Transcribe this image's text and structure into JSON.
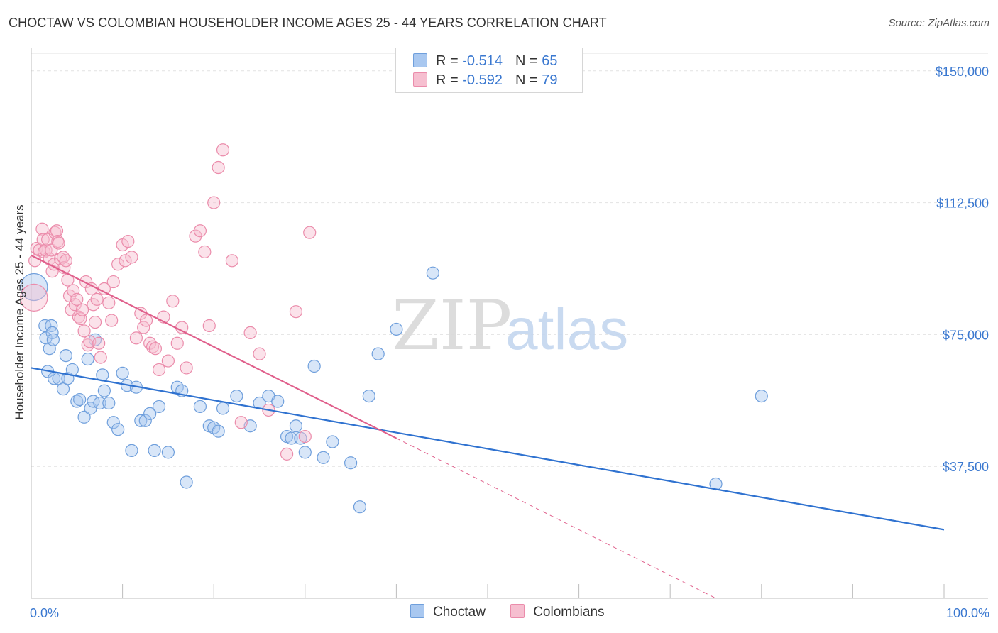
{
  "title": "CHOCTAW VS COLOMBIAN HOUSEHOLDER INCOME AGES 25 - 44 YEARS CORRELATION CHART",
  "source": "Source: ZipAtlas.com",
  "watermark": {
    "zip": "ZIP",
    "atlas": "atlas"
  },
  "legend_top": [
    {
      "r_label": "R = ",
      "r_value": "-0.514",
      "n_label": "N = ",
      "n_value": "65"
    },
    {
      "r_label": "R = ",
      "r_value": "-0.592",
      "n_label": "N = ",
      "n_value": "79"
    }
  ],
  "legend_bottom": [
    "Choctaw",
    "Colombians"
  ],
  "colors": {
    "choctaw_fill": "#a9c8f0",
    "choctaw_stroke": "#6f9fdc",
    "choctaw_line": "#2f72d0",
    "colombian_fill": "#f6bfd0",
    "colombian_stroke": "#eb8cab",
    "colombian_line": "#e0608c",
    "axis_label": "#3a78d0",
    "grid": "#e2e2e2"
  },
  "chart_data": {
    "type": "scatter",
    "title": "CHOCTAW VS COLOMBIAN HOUSEHOLDER INCOME AGES 25 - 44 YEARS CORRELATION CHART",
    "xlabel": "",
    "ylabel": "Householder Income Ages 25 - 44 years",
    "x_tick_labels": [
      "0.0%",
      "100.0%"
    ],
    "xlim": [
      0,
      100
    ],
    "ylim": [
      0,
      155000
    ],
    "y_ticks": [
      {
        "value": 37500,
        "label": "$37,500"
      },
      {
        "value": 75000,
        "label": "$75,000"
      },
      {
        "value": 112500,
        "label": "$112,500"
      },
      {
        "value": 150000,
        "label": "$150,000"
      }
    ],
    "series": [
      {
        "name": "Choctaw",
        "r": -0.514,
        "n": 65,
        "trend": {
          "x0": 0,
          "y0": 65500,
          "x1": 100,
          "y1": 19500,
          "dashed_from": null
        },
        "points": [
          [
            0.3,
            88500,
            "large"
          ],
          [
            1.5,
            77500
          ],
          [
            1.6,
            74000
          ],
          [
            1.8,
            64500
          ],
          [
            2.0,
            71000
          ],
          [
            2.2,
            77500
          ],
          [
            2.3,
            75500
          ],
          [
            2.4,
            73500
          ],
          [
            2.5,
            62500
          ],
          [
            3.0,
            62500
          ],
          [
            3.5,
            59500
          ],
          [
            3.8,
            69000
          ],
          [
            4.0,
            62500
          ],
          [
            4.5,
            65000
          ],
          [
            5.0,
            56000
          ],
          [
            5.3,
            56500
          ],
          [
            5.8,
            51500
          ],
          [
            6.2,
            68000
          ],
          [
            6.5,
            54000
          ],
          [
            6.8,
            56000
          ],
          [
            7.0,
            73500
          ],
          [
            7.5,
            55500
          ],
          [
            7.8,
            63500
          ],
          [
            8.0,
            59000
          ],
          [
            8.5,
            55500
          ],
          [
            9.0,
            50000
          ],
          [
            9.5,
            48000
          ],
          [
            10.0,
            64000
          ],
          [
            10.5,
            60500
          ],
          [
            11.0,
            42000
          ],
          [
            11.5,
            60000
          ],
          [
            12.0,
            50500
          ],
          [
            12.5,
            50500
          ],
          [
            13.0,
            52500
          ],
          [
            13.5,
            42000
          ],
          [
            14.0,
            54500
          ],
          [
            15.0,
            41500
          ],
          [
            16.0,
            60000
          ],
          [
            16.5,
            59000
          ],
          [
            17.0,
            33000
          ],
          [
            18.5,
            54500
          ],
          [
            19.5,
            49000
          ],
          [
            20.0,
            48500
          ],
          [
            20.5,
            47500
          ],
          [
            21.0,
            54000
          ],
          [
            22.5,
            57500
          ],
          [
            24.0,
            49000
          ],
          [
            25.0,
            55500
          ],
          [
            26.0,
            57500
          ],
          [
            27.0,
            56000
          ],
          [
            28.0,
            46000
          ],
          [
            28.5,
            45500
          ],
          [
            29.0,
            49000
          ],
          [
            29.5,
            45500
          ],
          [
            30.0,
            41500
          ],
          [
            31.0,
            66000
          ],
          [
            32.0,
            40000
          ],
          [
            33.0,
            44500
          ],
          [
            35.0,
            38500
          ],
          [
            36.0,
            26000
          ],
          [
            37.0,
            57500
          ],
          [
            38.0,
            69500
          ],
          [
            40.0,
            76500
          ],
          [
            44.0,
            92500
          ],
          [
            80.0,
            57500
          ],
          [
            75.0,
            32500
          ]
        ]
      },
      {
        "name": "Colombians",
        "r": -0.592,
        "n": 79,
        "trend": {
          "x0": 0,
          "y0": 97500,
          "x1": 75,
          "y1": 0,
          "dashed_from": 40
        },
        "points": [
          [
            0.3,
            85500,
            "large"
          ],
          [
            0.4,
            96000
          ],
          [
            0.6,
            99500
          ],
          [
            0.9,
            99000
          ],
          [
            1.2,
            105000
          ],
          [
            1.3,
            102000
          ],
          [
            1.4,
            98500
          ],
          [
            1.6,
            99000
          ],
          [
            1.8,
            102000
          ],
          [
            2.0,
            96500
          ],
          [
            2.2,
            99000
          ],
          [
            2.3,
            93000
          ],
          [
            2.5,
            95000
          ],
          [
            2.6,
            104000
          ],
          [
            2.8,
            104500
          ],
          [
            2.9,
            101500
          ],
          [
            3.0,
            101000
          ],
          [
            3.2,
            96500
          ],
          [
            3.5,
            97000
          ],
          [
            3.6,
            94000
          ],
          [
            3.8,
            96000
          ],
          [
            4.0,
            90500
          ],
          [
            4.2,
            86000
          ],
          [
            4.4,
            82000
          ],
          [
            4.6,
            87500
          ],
          [
            4.8,
            83500
          ],
          [
            5.0,
            85000
          ],
          [
            5.2,
            80000
          ],
          [
            5.4,
            79500
          ],
          [
            5.6,
            82000
          ],
          [
            5.8,
            76000
          ],
          [
            6.0,
            90000
          ],
          [
            6.2,
            72000
          ],
          [
            6.4,
            73000
          ],
          [
            6.6,
            88000
          ],
          [
            6.8,
            83500
          ],
          [
            7.0,
            78500
          ],
          [
            7.2,
            85000
          ],
          [
            7.4,
            72500
          ],
          [
            7.6,
            68500
          ],
          [
            8.0,
            88000
          ],
          [
            8.5,
            84000
          ],
          [
            8.8,
            79000
          ],
          [
            9.0,
            90000
          ],
          [
            9.5,
            95000
          ],
          [
            10.0,
            100500
          ],
          [
            10.3,
            96000
          ],
          [
            10.6,
            101500
          ],
          [
            11.0,
            97000
          ],
          [
            11.5,
            74000
          ],
          [
            12.0,
            81000
          ],
          [
            12.3,
            77000
          ],
          [
            12.6,
            79000
          ],
          [
            13.0,
            72500
          ],
          [
            13.3,
            71500
          ],
          [
            13.6,
            71000
          ],
          [
            14.0,
            65000
          ],
          [
            14.5,
            80000
          ],
          [
            15.0,
            67500
          ],
          [
            15.5,
            84500
          ],
          [
            16.0,
            72500
          ],
          [
            16.5,
            77000
          ],
          [
            17.0,
            65500
          ],
          [
            18.0,
            103000
          ],
          [
            18.5,
            104500
          ],
          [
            19.0,
            98500
          ],
          [
            19.5,
            77500
          ],
          [
            20.0,
            112500
          ],
          [
            20.5,
            122500
          ],
          [
            21.0,
            127500
          ],
          [
            22.0,
            96000
          ],
          [
            23.0,
            50000
          ],
          [
            24.0,
            75500
          ],
          [
            25.0,
            69500
          ],
          [
            26.0,
            53500
          ],
          [
            28.0,
            41000
          ],
          [
            29.0,
            81500
          ],
          [
            30.0,
            46000
          ],
          [
            30.5,
            104000
          ]
        ]
      }
    ]
  }
}
